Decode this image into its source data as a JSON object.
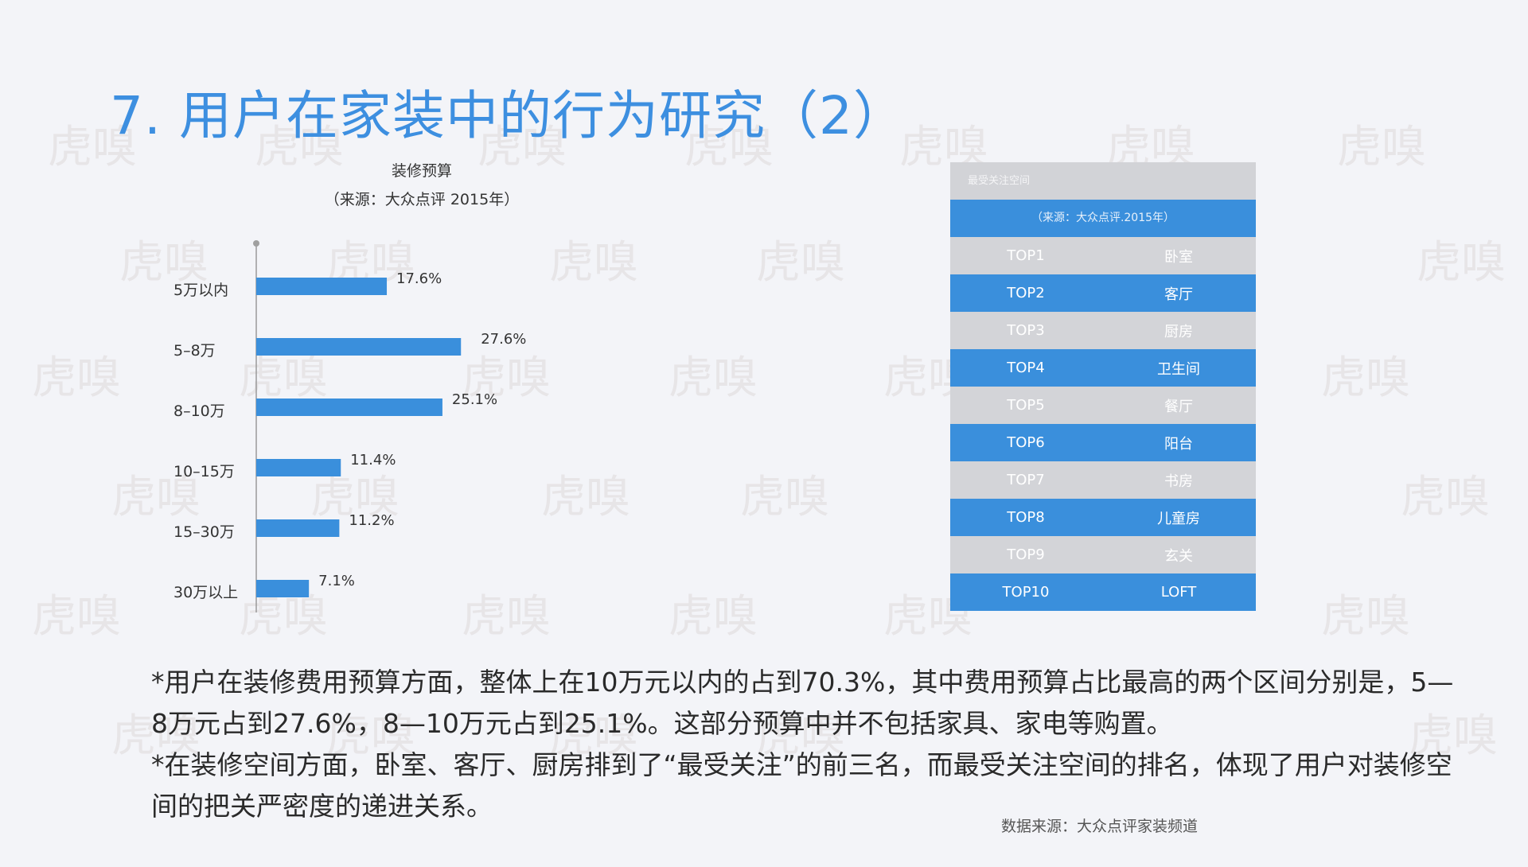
{
  "page": {
    "title": "7. 用户在家装中的行为研究（2）",
    "watermark": "虎嗅"
  },
  "chart_data": {
    "type": "bar",
    "orientation": "horizontal",
    "title": "装修预算",
    "subtitle": "（来源：大众点评 2015年）",
    "categories": [
      "5万以内",
      "5–8万",
      "8–10万",
      "10–15万",
      "15–30万",
      "30万以上"
    ],
    "values": [
      17.6,
      27.6,
      25.1,
      11.4,
      11.2,
      7.1
    ],
    "value_labels": [
      "17.6%",
      "27.6%",
      "25.1%",
      "11.4%",
      "11.2%",
      "7.1%"
    ],
    "xlim": [
      0,
      30
    ],
    "unit": "%",
    "grid": false,
    "legend": "none",
    "bar_color": "#3a8fdc"
  },
  "ranking": {
    "header": "最受关注空间",
    "source": "（来源：大众点评.2015年）",
    "rows": [
      {
        "rank": "TOP1",
        "space": "卧室"
      },
      {
        "rank": "TOP2",
        "space": "客厅"
      },
      {
        "rank": "TOP3",
        "space": "厨房"
      },
      {
        "rank": "TOP4",
        "space": "卫生间"
      },
      {
        "rank": "TOP5",
        "space": "餐厅"
      },
      {
        "rank": "TOP6",
        "space": "阳台"
      },
      {
        "rank": "TOP7",
        "space": "书房"
      },
      {
        "rank": "TOP8",
        "space": "儿童房"
      },
      {
        "rank": "TOP9",
        "space": "玄关"
      },
      {
        "rank": "TOP10",
        "space": "LOFT"
      }
    ]
  },
  "summary": {
    "paragraph1": "*用户在装修费用预算方面，整体上在10万元以内的占到70.3%，其中费用预算占比最高的两个区间分别是，5—8万元占到27.6%，8—10万元占到25.1%。这部分预算中并不包括家具、家电等购置。",
    "paragraph2": "*在装修空间方面，卧室、客厅、厨房排到了“最受关注”的前三名，而最受关注空间的排名，体现了用户对装修空间的把关严密度的递进关系。"
  },
  "footer": {
    "data_source": "数据来源：大众点评家装频道"
  }
}
